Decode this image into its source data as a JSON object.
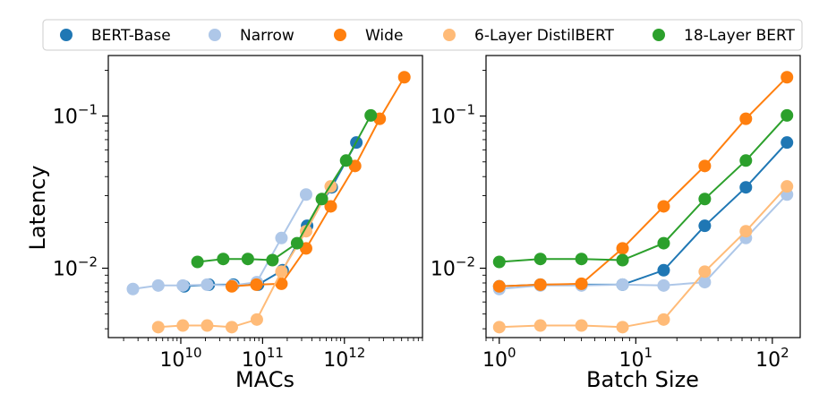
{
  "ylabel": "Latency",
  "legend": {
    "placement": "top",
    "entries": [
      {
        "name": "BERT-Base",
        "color": "#1f77b4"
      },
      {
        "name": "Narrow",
        "color": "#aec7e8"
      },
      {
        "name": "Wide",
        "color": "#ff7f0e"
      },
      {
        "name": "6-Layer DistilBERT",
        "color": "#ffbb78"
      },
      {
        "name": "18-Layer BERT",
        "color": "#2ca02c"
      }
    ]
  },
  "chart_data": [
    {
      "type": "line",
      "title": "",
      "xlabel": "MACs",
      "ylabel": "Latency",
      "xscale": "log",
      "yscale": "log",
      "xlim": [
        1300000000.0,
        9000000000000.0
      ],
      "ylim": [
        0.0035,
        0.25
      ],
      "xticks": [
        {
          "value": 10000000000.0,
          "base": "10",
          "exp": "10"
        },
        {
          "value": 100000000000.0,
          "base": "10",
          "exp": "11"
        },
        {
          "value": 1000000000000.0,
          "base": "10",
          "exp": "12"
        }
      ],
      "yticks": [
        {
          "value": 0.01,
          "base": "10",
          "exp": "−2"
        },
        {
          "value": 0.1,
          "base": "10",
          "exp": "−1"
        }
      ],
      "series": [
        {
          "name": "BERT-Base",
          "color": "#1f77b4",
          "x": [
            11000000000.0,
            22000000000.0,
            44000000000.0,
            88000000000.0,
            176000000000.0,
            350000000000.0,
            700000000000.0,
            1400000000000.0
          ],
          "y": [
            0.0076,
            0.0078,
            0.0078,
            0.0078,
            0.0097,
            0.019,
            0.034,
            0.067
          ]
        },
        {
          "name": "Narrow",
          "color": "#aec7e8",
          "x": [
            2600000000.0,
            5300000000.0,
            10600000000.0,
            21000000000.0,
            43000000000.0,
            85000000000.0,
            170000000000.0,
            340000000000.0
          ],
          "y": [
            0.0073,
            0.0077,
            0.0077,
            0.0078,
            0.0077,
            0.0081,
            0.0158,
            0.0305
          ]
        },
        {
          "name": "Wide",
          "color": "#ff7f0e",
          "x": [
            42000000000.0,
            84000000000.0,
            170000000000.0,
            340000000000.0,
            680000000000.0,
            1350000000000.0,
            2700000000000.0,
            5400000000000.0
          ],
          "y": [
            0.0076,
            0.0078,
            0.0079,
            0.0135,
            0.0255,
            0.047,
            0.096,
            0.18
          ]
        },
        {
          "name": "6-Layer DistilBERT",
          "color": "#ffbb78",
          "x": [
            5300000000.0,
            10600000000.0,
            21000000000.0,
            42000000000.0,
            85000000000.0,
            170000000000.0,
            340000000000.0,
            680000000000.0
          ],
          "y": [
            0.0041,
            0.0042,
            0.0042,
            0.0041,
            0.0046,
            0.0095,
            0.0175,
            0.0345
          ]
        },
        {
          "name": "18-Layer BERT",
          "color": "#2ca02c",
          "x": [
            16000000000.0,
            33000000000.0,
            66000000000.0,
            132000000000.0,
            264000000000.0,
            530000000000.0,
            1050000000000.0,
            2100000000000.0
          ],
          "y": [
            0.011,
            0.0115,
            0.0115,
            0.0113,
            0.0146,
            0.0285,
            0.051,
            0.101
          ]
        }
      ]
    },
    {
      "type": "line",
      "title": "",
      "xlabel": "Batch Size",
      "ylabel": "",
      "xscale": "log",
      "yscale": "log",
      "xlim": [
        0.8,
        160
      ],
      "ylim": [
        0.0035,
        0.25
      ],
      "xticks": [
        {
          "value": 1,
          "base": "10",
          "exp": "0"
        },
        {
          "value": 10,
          "base": "10",
          "exp": "1"
        },
        {
          "value": 100,
          "base": "10",
          "exp": "2"
        }
      ],
      "yticks": [
        {
          "value": 0.01,
          "base": "10",
          "exp": "−2"
        },
        {
          "value": 0.1,
          "base": "10",
          "exp": "−1"
        }
      ],
      "series": [
        {
          "name": "BERT-Base",
          "color": "#1f77b4",
          "x": [
            1,
            2,
            4,
            8,
            16,
            32,
            64,
            128
          ],
          "y": [
            0.0076,
            0.0078,
            0.0078,
            0.0078,
            0.0097,
            0.019,
            0.034,
            0.067
          ]
        },
        {
          "name": "Narrow",
          "color": "#aec7e8",
          "x": [
            1,
            2,
            4,
            8,
            16,
            32,
            64,
            128
          ],
          "y": [
            0.0073,
            0.0077,
            0.0077,
            0.0078,
            0.0077,
            0.0081,
            0.0158,
            0.0305
          ]
        },
        {
          "name": "Wide",
          "color": "#ff7f0e",
          "x": [
            1,
            2,
            4,
            8,
            16,
            32,
            64,
            128
          ],
          "y": [
            0.0076,
            0.0078,
            0.0079,
            0.0135,
            0.0255,
            0.047,
            0.096,
            0.18
          ]
        },
        {
          "name": "6-Layer DistilBERT",
          "color": "#ffbb78",
          "x": [
            1,
            2,
            4,
            8,
            16,
            32,
            64,
            128
          ],
          "y": [
            0.0041,
            0.0042,
            0.0042,
            0.0041,
            0.0046,
            0.0095,
            0.0175,
            0.0345
          ]
        },
        {
          "name": "18-Layer BERT",
          "color": "#2ca02c",
          "x": [
            1,
            2,
            4,
            8,
            16,
            32,
            64,
            128
          ],
          "y": [
            0.011,
            0.0115,
            0.0115,
            0.0113,
            0.0146,
            0.0285,
            0.051,
            0.101
          ]
        }
      ]
    }
  ]
}
